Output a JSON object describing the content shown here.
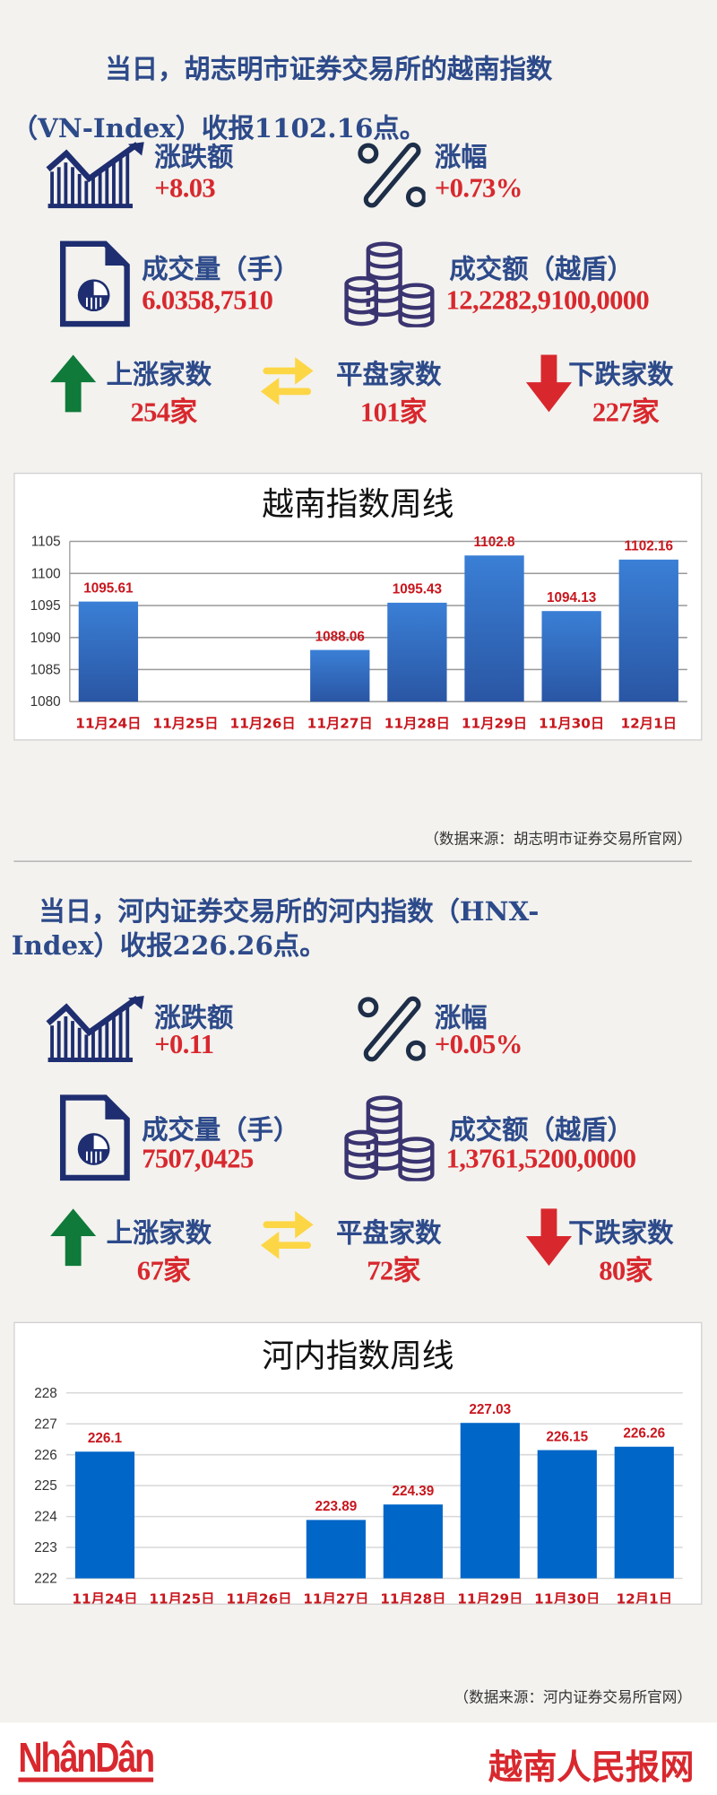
{
  "colors": {
    "navy": "#2d4a8a",
    "red": "#d8282e",
    "green": "#0f7a3a",
    "yellow": "#fdd646",
    "bar_blue": "#2f6cc4",
    "bar_blue2": "#0066c8"
  },
  "sections": [
    {
      "headline_line1": "当日，胡志明市证券交易所的越南指数",
      "headline_line2": "（VN-Index）收报1102.16点。",
      "change_label": "涨跌额",
      "change_value": "+8.03",
      "pct_label": "涨幅",
      "pct_value": "+0.73%",
      "volume_label": "成交量（手）",
      "volume_value": "6.0358,7510",
      "turnover_label": "成交额（越盾）",
      "turnover_value": "12,2282,9100,0000",
      "up_label": "上涨家数",
      "up_value": "254家",
      "flat_label": "平盘家数",
      "flat_value": "101家",
      "down_label": "下跌家数",
      "down_value": "227家",
      "source": "（数据来源：胡志明市证券交易所官网）",
      "icons": [
        "chart-up-icon",
        "percent-icon",
        "document-pie-icon",
        "coins-icon",
        "arrow-up-icon",
        "swap-arrows-icon",
        "arrow-down-icon"
      ]
    },
    {
      "headline_line1": "当日，河内证券交易所的河内指数（HNX-",
      "headline_line2": "Index）收报226.26点。",
      "change_label": "涨跌额",
      "change_value": "+0.11",
      "pct_label": "涨幅",
      "pct_value": "+0.05%",
      "volume_label": "成交量（手）",
      "volume_value": "7507,0425",
      "turnover_label": "成交额（越盾）",
      "turnover_value": "1,3761,5200,0000",
      "up_label": "上涨家数",
      "up_value": "67家",
      "flat_label": "平盘家数",
      "flat_value": "72家",
      "down_label": "下跌家数",
      "down_value": "80家",
      "source": "（数据来源：河内证券交易所官网）",
      "icons": [
        "chart-up-icon",
        "percent-icon",
        "document-pie-icon",
        "coins-icon",
        "arrow-up-icon",
        "swap-arrows-icon",
        "arrow-down-icon"
      ]
    }
  ],
  "chart_data": [
    {
      "type": "bar",
      "title": "越南指数周线",
      "categories": [
        "11月24日",
        "11月25日",
        "11月26日",
        "11月27日",
        "11月28日",
        "11月29日",
        "11月30日",
        "12月1日"
      ],
      "values": [
        1095.61,
        null,
        null,
        1088.06,
        1095.43,
        1102.8,
        1094.13,
        1102.16
      ],
      "labels": [
        "1095.61",
        "",
        "",
        "1088.06",
        "1095.43",
        "1102.8",
        "1094.13",
        "1102.16"
      ],
      "ylim": [
        1080,
        1105
      ],
      "yticks": [
        "1080",
        "1085",
        "1090",
        "1095",
        "1100",
        "1105"
      ],
      "grid": true,
      "legend": "none"
    },
    {
      "type": "bar",
      "title": "河内指数周线",
      "categories": [
        "11月24日",
        "11月25日",
        "11月26日",
        "11月27日",
        "11月28日",
        "11月29日",
        "11月30日",
        "12月1日"
      ],
      "values": [
        226.1,
        null,
        null,
        223.89,
        224.39,
        227.03,
        226.15,
        226.26
      ],
      "labels": [
        "226.1",
        "",
        "",
        "223.89",
        "224.39",
        "227.03",
        "226.15",
        "226.26"
      ],
      "ylim": [
        222,
        228
      ],
      "yticks": [
        "222",
        "223",
        "224",
        "225",
        "226",
        "227",
        "228"
      ],
      "grid": true,
      "legend": "none"
    }
  ],
  "footer": {
    "logo": "NhânDân",
    "brand": "越南人民报网"
  }
}
